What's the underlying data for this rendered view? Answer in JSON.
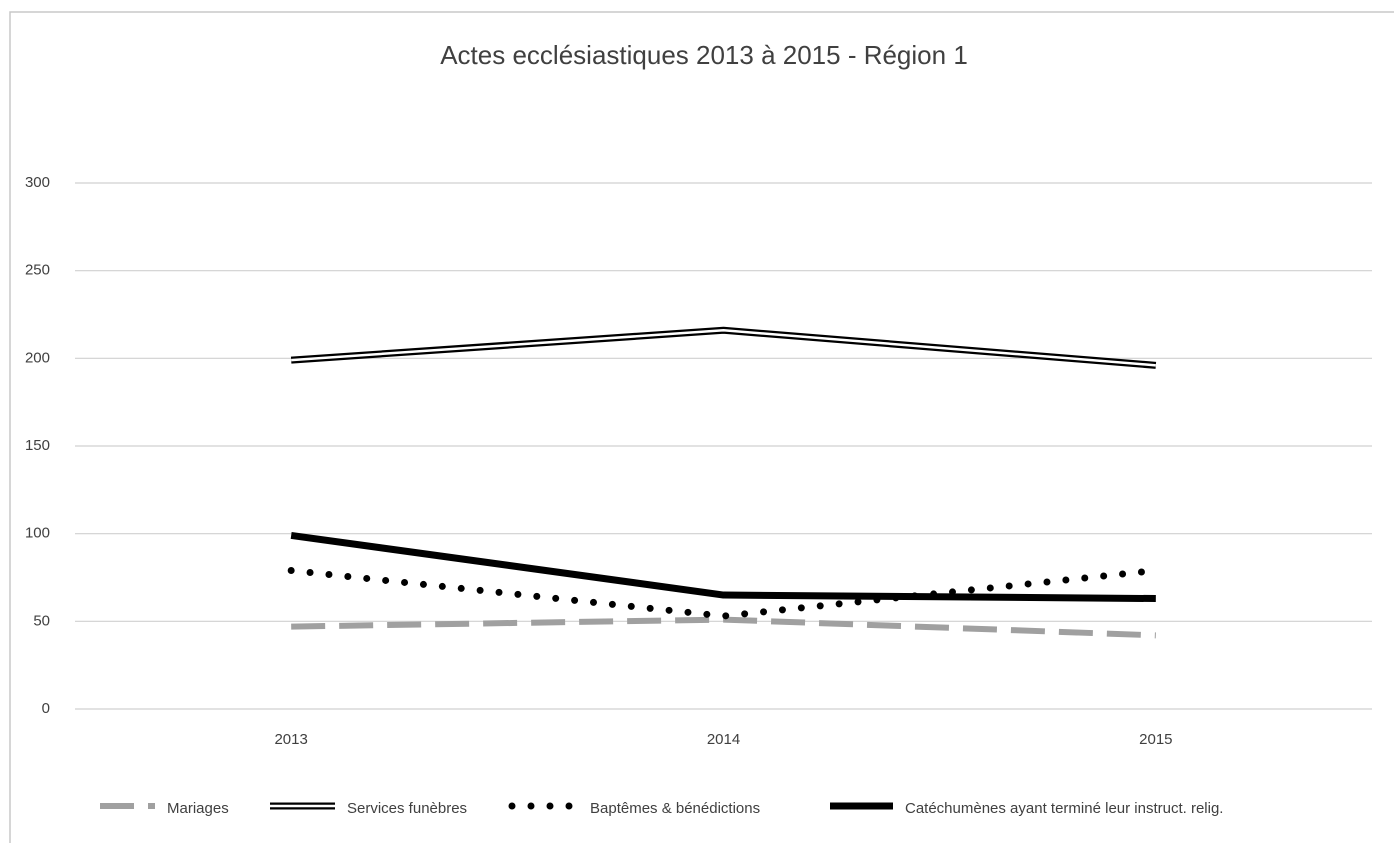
{
  "chart_data": {
    "type": "line",
    "title": "Actes ecclésiastiques  2013 à 2015 -  Région 1",
    "categories": [
      "2013",
      "2014",
      "2015"
    ],
    "series": [
      {
        "name": "Mariages",
        "color": "#a0a0a0",
        "line_style": "dashed",
        "values": [
          47,
          51,
          42
        ]
      },
      {
        "name": "Services funèbres",
        "color": "#000000",
        "line_style": "double",
        "values": [
          199,
          216,
          196
        ]
      },
      {
        "name": "Baptêmes & bénédictions",
        "color": "#000000",
        "line_style": "dotted",
        "values": [
          79,
          53,
          79
        ]
      },
      {
        "name": "Catéchumènes ayant terminé leur instruct. relig.",
        "color": "#000000",
        "line_style": "solid",
        "values": [
          99,
          65,
          63
        ]
      }
    ],
    "ylim": [
      0,
      300
    ],
    "yticks": [
      0,
      50,
      100,
      150,
      200,
      250,
      300
    ],
    "grid": true,
    "legend": "bottom"
  }
}
